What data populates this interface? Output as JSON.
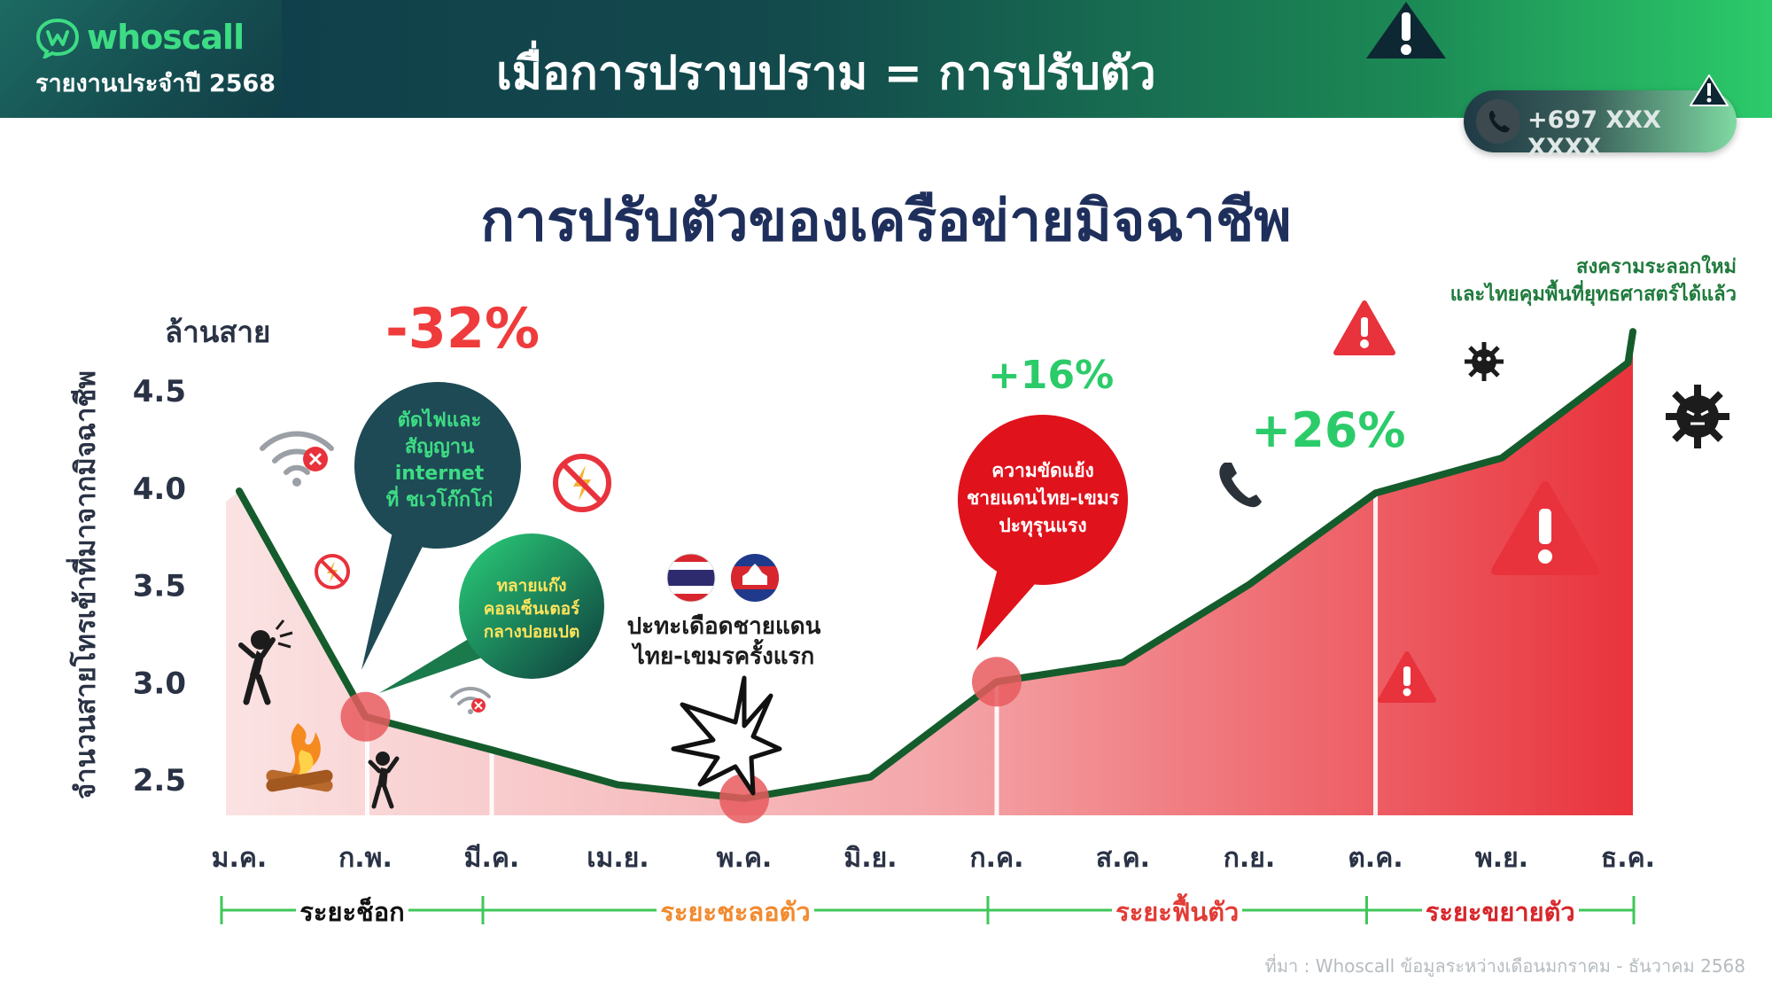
{
  "header": {
    "brand": "whoscall",
    "report": "รายงานประจำปี 2568",
    "title": "เมื่อการปราบปราม = การปรับตัว",
    "phone_number": "+697 XXX XXXX"
  },
  "chart_data": {
    "type": "area",
    "title": "การปรับตัวของเครือข่ายมิจฉาชีพ",
    "unit_label": "ล้านสาย",
    "ylabel": "จำนวนสายโทรเข้าที่มาจากมิจฉาชีพ",
    "ylim": [
      2.3,
      4.75
    ],
    "yticks": [
      2.5,
      3.0,
      3.5,
      4.0,
      4.5
    ],
    "ytick_labels": [
      "2.5",
      "3.0",
      "3.5",
      "4.0",
      "4.5"
    ],
    "categories": [
      "ม.ค.",
      "ก.พ.",
      "มี.ค.",
      "เม.ย.",
      "พ.ค.",
      "มิ.ย.",
      "ก.ค.",
      "ส.ค.",
      "ก.ย.",
      "ต.ค.",
      "พ.ย.",
      "ธ.ค."
    ],
    "series": [
      {
        "values": [
          3.98,
          2.82,
          2.65,
          2.47,
          2.4,
          2.51,
          3.0,
          3.1,
          3.5,
          3.97,
          4.15,
          4.64
        ]
      }
    ],
    "line_end": 4.8,
    "highlight_points": [
      {
        "index": 1,
        "value": 2.82
      },
      {
        "index": 4,
        "value": 2.4
      },
      {
        "index": 6,
        "value": 3.0
      }
    ],
    "annotations": {
      "drop": "-32%",
      "rise1": "+16%",
      "rise2": "+26%",
      "top_right": "สงครามระลอกใหม่\nและไทยคุมพื้นที่ยุทธศาสตร์ได้แล้ว",
      "bubble_power_cut": "ตัดไฟและ\nสัญญาน\ninternet\nที่ ชเวโก๊กโก่",
      "bubble_call_center": "ทลายแก๊ง\nคอลเซ็นเตอร์\nกลางปอยเปต",
      "bubble_conflict": "ความขัดแย้ง\nชายแดนไทย-เขมร\nปะทุรุนแรง",
      "border_clash": "ปะทะเดือดชายแดน\nไทย-เขมรครั้งแรก"
    },
    "phases": [
      {
        "label": "ระยะช็อก",
        "color": "#111111",
        "start": 0,
        "end": 2
      },
      {
        "label": "ระยะชะลอตัว",
        "color": "#f28a2e",
        "start": 2,
        "end": 6
      },
      {
        "label": "ระยะฟื้นตัว",
        "color": "#e23b35",
        "start": 6,
        "end": 9
      },
      {
        "label": "ระยะขยายตัว",
        "color": "#d7262b",
        "start": 9,
        "end": 11.5
      }
    ],
    "colors": {
      "line": "#155c2c",
      "fill": "#e9333c",
      "highlight": "#e85a5e",
      "phase_axis": "#3fc75a"
    }
  },
  "source": "ที่มา : Whoscall ข้อมูลระหว่างเดือนมกราคม - ธันวาคม 2568"
}
